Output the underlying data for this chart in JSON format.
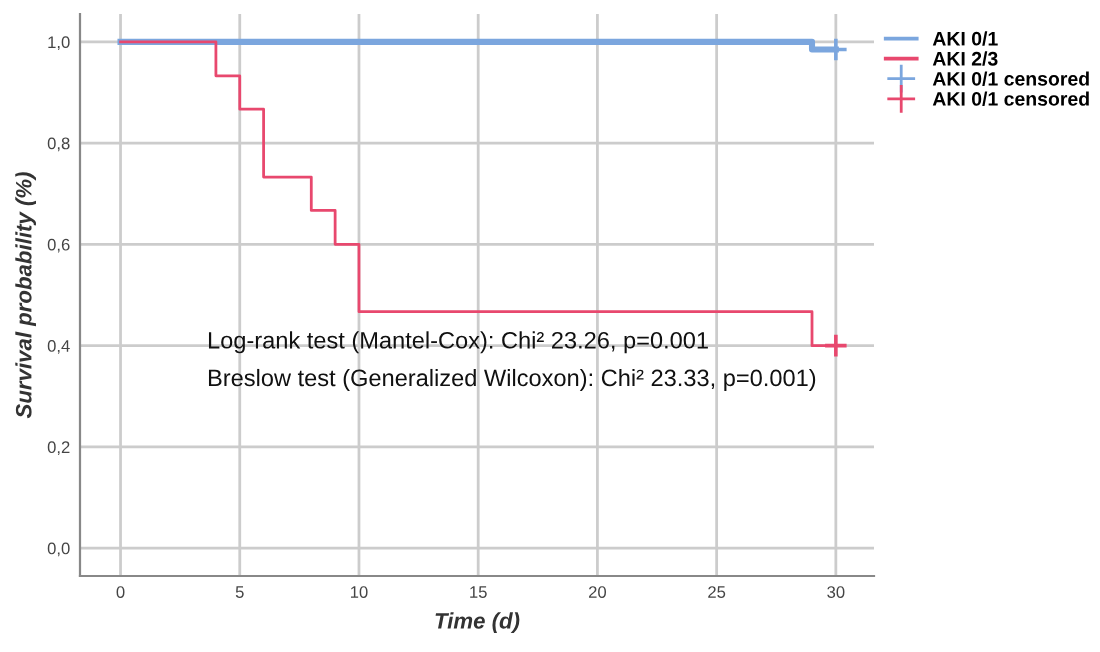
{
  "chart_data": {
    "type": "step",
    "xlabel": "Time (d)",
    "ylabel": "Survival probability (%)",
    "series": [
      {
        "name": "AKI 0/1",
        "color": "#7ba6de",
        "x": [
          0,
          29,
          30
        ],
        "values": [
          1.0,
          0.985,
          0.985
        ]
      },
      {
        "name": "AKI 2/3",
        "color": "#e8486e",
        "x": [
          0,
          4,
          5,
          6,
          8,
          9,
          10,
          29,
          30
        ],
        "values": [
          1.0,
          0.933,
          0.867,
          0.733,
          0.667,
          0.6,
          0.467,
          0.4,
          0.4
        ]
      },
      {
        "name": "AKI 0/1 censored",
        "type": "scatter",
        "marker": "cross",
        "color": "#7ba6de",
        "x": [
          30
        ],
        "values": [
          0.985
        ]
      },
      {
        "name": "AKI 0/1 censored",
        "type": "scatter",
        "marker": "cross",
        "color": "#e8486e",
        "x": [
          30
        ],
        "values": [
          0.4
        ]
      }
    ],
    "xlim": [
      -1.7,
      31.6
    ],
    "xticks": [
      0,
      5,
      10,
      15,
      20,
      25,
      30
    ],
    "ylim": [
      -0.055,
      1.055
    ],
    "yticks": [
      {
        "value": 0,
        "label": "0,0"
      },
      {
        "value": 0.2,
        "label": "0,2"
      },
      {
        "value": 0.4,
        "label": "0,4"
      },
      {
        "value": 0.6,
        "label": "0,6"
      },
      {
        "value": 0.8,
        "label": "0,8"
      },
      {
        "value": 1.0,
        "label": "1,0"
      }
    ],
    "grid": true,
    "legend": "top right",
    "annotations": [
      "Log-rank test (Mantel-Cox): Chi² 23.26, p=0.001",
      "Breslow test (Generalized Wilcoxon): Chi² 23.33, p=0.001)"
    ]
  }
}
